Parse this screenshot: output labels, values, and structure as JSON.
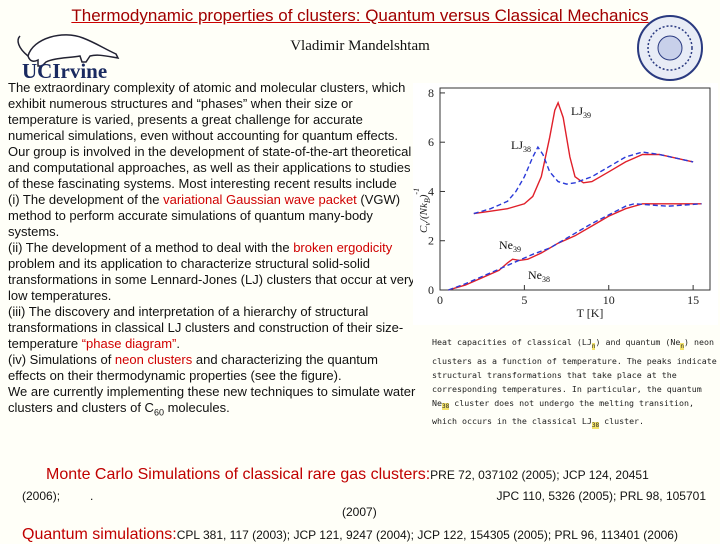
{
  "header": {
    "title": "Thermodynamic properties of clusters: Quantum versus Classical Mechanics",
    "author": "Vladimir Mandelshtam",
    "logo_text": "UCIrvine"
  },
  "body": [
    [
      {
        "text": "The extraordinary complexity of atomic and molecular clusters, which exhibit numerous structures and “phases” when their size or temperature is varied, presents a great challenge for accurate numerical simulations, even without accounting for quantum effects. Our group is involved in the development of state-of-the-art theoretical and computational approaches, as well as their applications to studies of these fascinating systems. Most interesting recent results include"
      }
    ],
    [
      {
        "text": "(i) The development of the "
      },
      {
        "text": "variational Gaussian wave packet",
        "red": true
      },
      {
        "text": " (VGW) method to perform accurate simulations of quantum many-body systems."
      }
    ],
    [
      {
        "text": "(ii) The development of a method to deal with the "
      },
      {
        "text": "broken ergodicity",
        "red": true
      },
      {
        "text": " problem and its application to characterize structural solid-solid  transformations in some Lennard-Jones (LJ)  clusters that occur at very low temperatures."
      }
    ],
    [
      {
        "text": "(iii) The discovery and interpretation of a hierarchy of structural transformations in classical LJ clusters and construction of their size-temperature "
      },
      {
        "text": "“phase diagram”",
        "red": true
      },
      {
        "text": "."
      }
    ],
    [
      {
        "text": "(iv) Simulations of "
      },
      {
        "text": "neon clusters",
        "red": true
      },
      {
        "text": " and characterizing the quantum effects on their thermodynamic properties (see the figure)."
      }
    ],
    [
      {
        "text": "We are currently implementing these new techniques to simulate water clusters and clusters of C"
      },
      {
        "text": "60",
        "sub": true
      },
      {
        "text": "  molecules."
      }
    ]
  ],
  "chart_data": {
    "type": "line",
    "xlabel": "T  [K]",
    "ylabel": [
      {
        "text": "C"
      },
      {
        "text": "v",
        "sub": true
      },
      {
        "text": "/(Nk"
      },
      {
        "text": "B",
        "sub": true
      },
      {
        "text": ")"
      },
      {
        "text": "-1",
        "sup": true
      }
    ],
    "xlim": [
      0,
      16
    ],
    "ylim": [
      0,
      8.2
    ],
    "xticks": [
      0,
      5,
      10,
      15
    ],
    "yticks": [
      0,
      2,
      4,
      6,
      8
    ],
    "series": [
      {
        "label": {
          "text": "LJ",
          "sub": "39"
        },
        "color": "#e0202a",
        "dash": false,
        "x": [
          2,
          3,
          4,
          5,
          5.5,
          6,
          6.5,
          6.8,
          7,
          7.3,
          7.7,
          8,
          8.5,
          9,
          10,
          11,
          12,
          13,
          14,
          15
        ],
        "values": [
          3.1,
          3.2,
          3.3,
          3.5,
          3.8,
          4.6,
          6.2,
          7.3,
          7.6,
          7,
          5.4,
          4.6,
          4.35,
          4.4,
          4.8,
          5.2,
          5.5,
          5.5,
          5.35,
          5.2
        ]
      },
      {
        "label": {
          "text": "LJ",
          "sub": "38"
        },
        "color": "#2a3ad8",
        "dash": true,
        "x": [
          2,
          3,
          4,
          4.5,
          5,
          5.5,
          5.8,
          6.1,
          6.5,
          7,
          7.5,
          8,
          9,
          10,
          11,
          12,
          13,
          14,
          15
        ],
        "values": [
          3.1,
          3.3,
          3.6,
          4,
          4.6,
          5.4,
          5.8,
          5.5,
          4.8,
          4.4,
          4.3,
          4.35,
          4.6,
          5,
          5.4,
          5.6,
          5.5,
          5.35,
          5.2
        ]
      },
      {
        "label": {
          "text": "Ne",
          "sub": "39"
        },
        "color": "#e0202a",
        "dash": false,
        "x": [
          0.5,
          1.5,
          2.5,
          3.5,
          4,
          4.3,
          4.7,
          5.2,
          6,
          7,
          8,
          9,
          10,
          11,
          12,
          13,
          14,
          15.5
        ],
        "values": [
          0,
          0.2,
          0.5,
          0.8,
          1.1,
          1.25,
          1.2,
          1.25,
          1.5,
          1.9,
          2.2,
          2.6,
          3,
          3.3,
          3.5,
          3.5,
          3.5,
          3.5
        ]
      },
      {
        "label": {
          "text": "Ne",
          "sub": "38"
        },
        "color": "#2a3ad8",
        "dash": true,
        "x": [
          0.5,
          1.5,
          2.5,
          3.5,
          4.5,
          5.5,
          6.5,
          8,
          9,
          10,
          11,
          11.5,
          12.5,
          13.5,
          14.5,
          15.5
        ],
        "values": [
          0,
          0.25,
          0.55,
          0.85,
          1.15,
          1.45,
          1.7,
          2.3,
          2.7,
          3.05,
          3.4,
          3.5,
          3.45,
          3.4,
          3.45,
          3.5
        ]
      }
    ]
  },
  "caption": [
    {
      "text": "Heat capacities of classical (LJ"
    },
    {
      "text": "n",
      "sub": true
    },
    {
      "text": ") and quantum (Ne"
    },
    {
      "text": "n",
      "sub": true
    },
    {
      "text": ") neon clusters as a function of temperature. The peaks indicate structural transformations that take place at the corresponding temperatures. In particular, the quantum Ne"
    },
    {
      "text": "38",
      "sub": true
    },
    {
      "text": " cluster does not undergo the melting transition, which occurs in the classical LJ"
    },
    {
      "text": "38",
      "sub": true
    },
    {
      "text": " cluster."
    }
  ],
  "references": {
    "monte_carlo": {
      "heading": "Monte Carlo Simulations of classical rare gas clusters:",
      "lines": [
        "PRE 72, 037102 (2005); JCP 124, 20451",
        "(2006);",
        ".",
        "JPC 110, 5326 (2005); PRL 98, 105701",
        "(2007)"
      ]
    },
    "quantum": {
      "heading": "Quantum simulations:",
      "text": "CPL 381, 117 (2003); JCP 121, 9247 (2004); JCP 122, 154305 (2005); PRL 96, 113401 (2006)"
    }
  }
}
